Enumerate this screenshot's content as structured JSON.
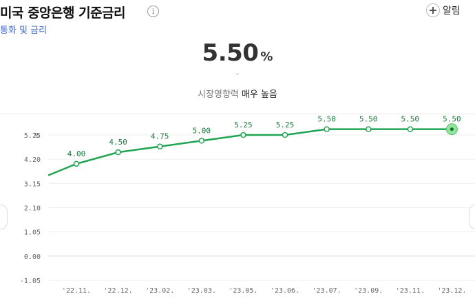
{
  "header": {
    "title": "미국 중앙은행 기준금리",
    "info_icon_glyph": "i",
    "subtitle": "통화 및 금리",
    "alarm_label": "알림"
  },
  "summary": {
    "value": "5.50",
    "unit": "%",
    "change": "-",
    "impact_label": "시장영향력",
    "impact_value": "매우 높음"
  },
  "chart_data": {
    "type": "line",
    "ylabel": "%",
    "ylim": [
      -1.05,
      5.25
    ],
    "y_ticks": [
      "5.25",
      "4.20",
      "3.15",
      "2.10",
      "1.05",
      "0.00",
      "-1.05"
    ],
    "categories": [
      "'22.11.",
      "'22.12.",
      "'23.02.",
      "'23.03.",
      "'23.05.",
      "'23.06.",
      "'23.07.",
      "'23.09.",
      "'23.11.",
      "'23.12."
    ],
    "series": [
      {
        "values": [
          4.0,
          4.5,
          4.75,
          5.0,
          5.25,
          5.25,
          5.5,
          5.5,
          5.5,
          5.5
        ],
        "labels": [
          "4.00",
          "4.50",
          "4.75",
          "5.00",
          "5.25",
          "5.25",
          "5.50",
          "5.50",
          "5.50",
          "5.50"
        ]
      }
    ],
    "line_start_value": 3.5,
    "line_color": "#1fa552",
    "grid": true
  }
}
